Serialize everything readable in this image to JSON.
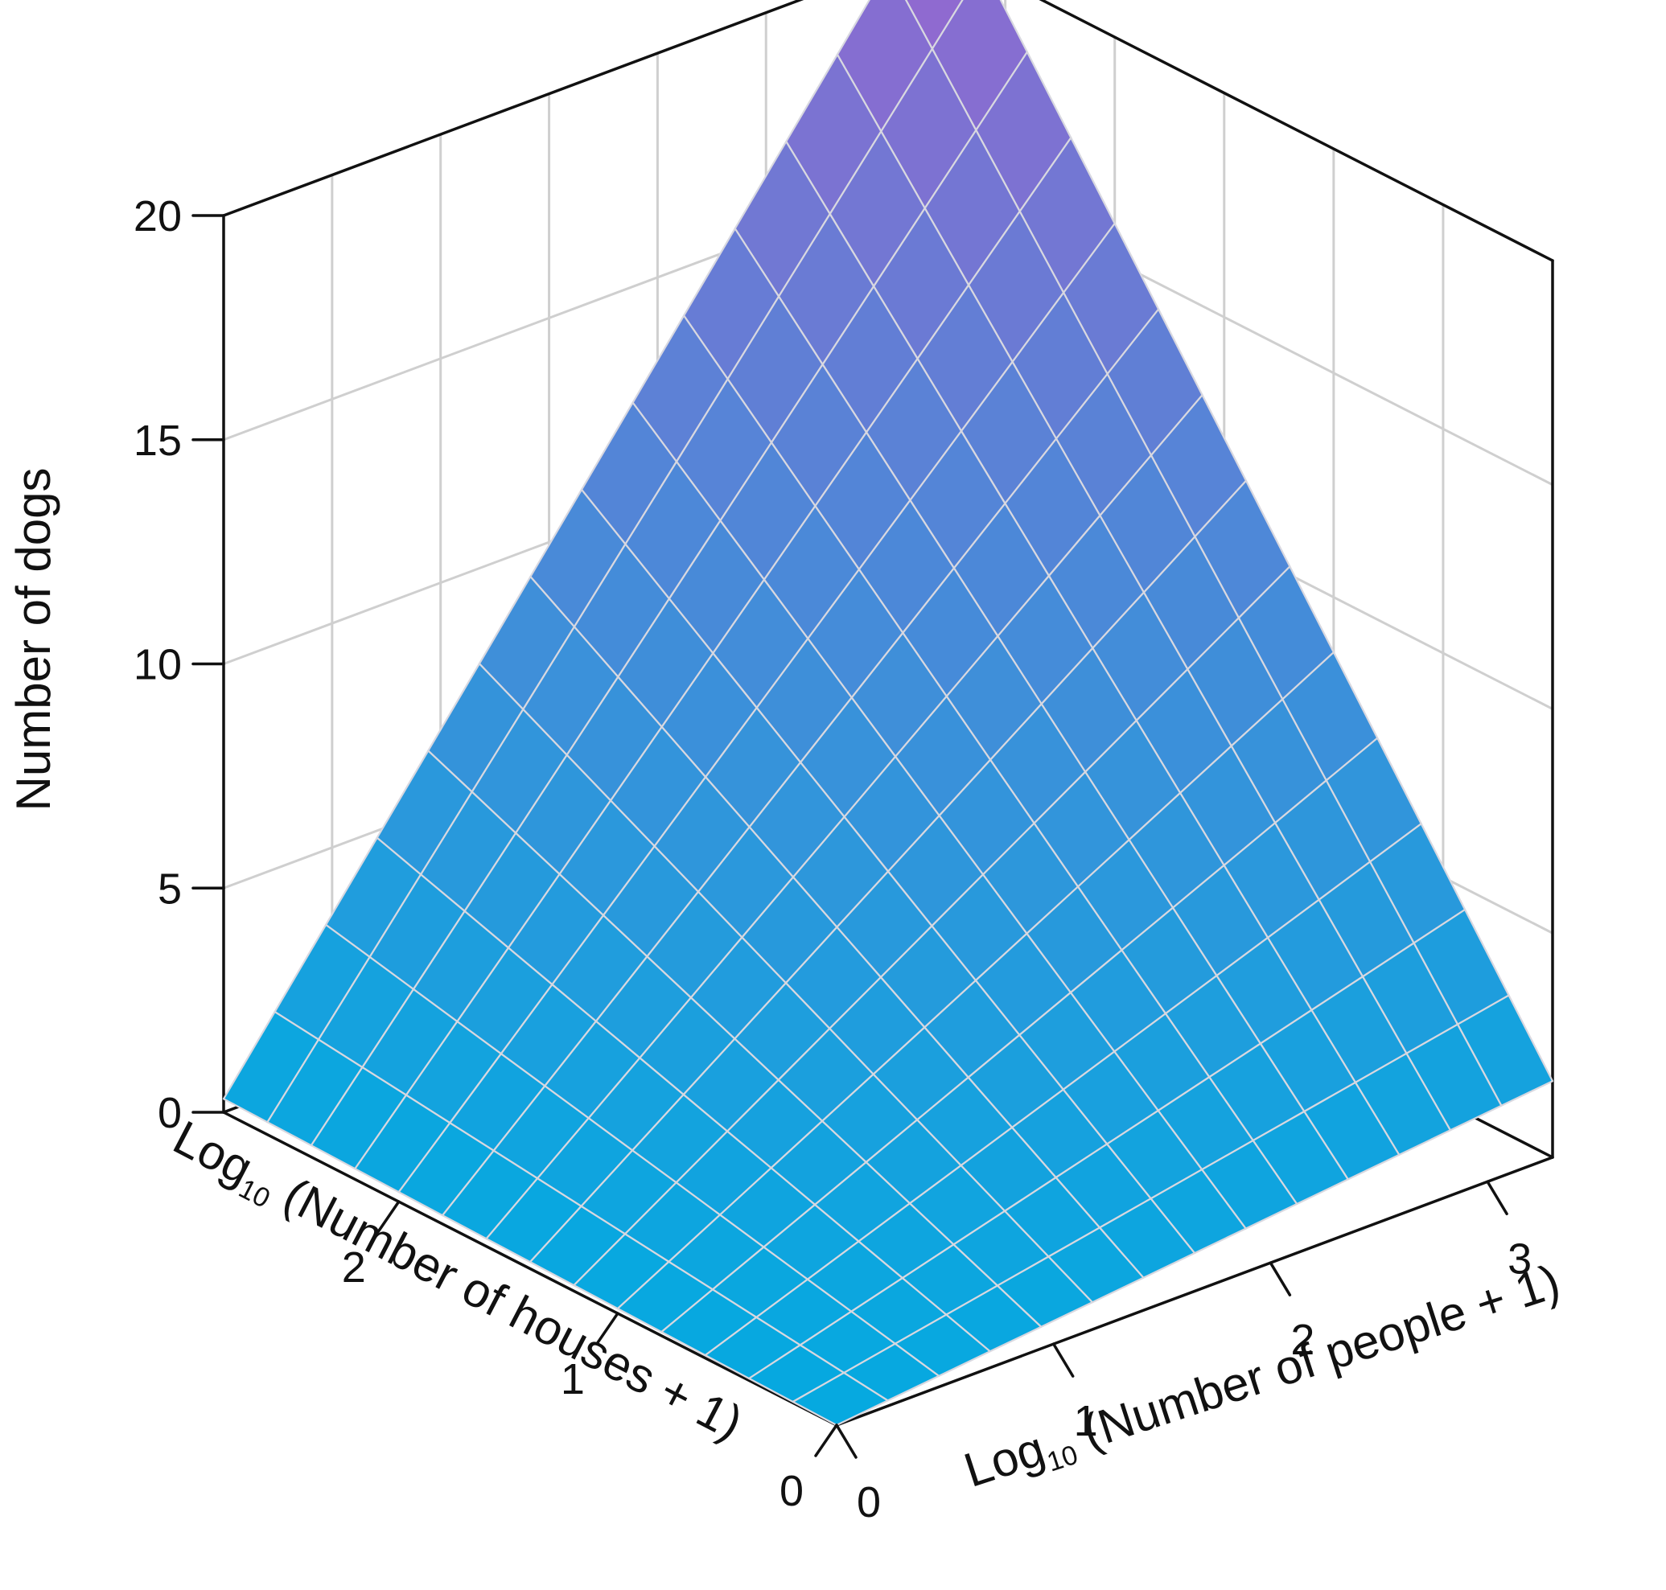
{
  "chart_data": {
    "type": "surface",
    "zlabel": "Number of dogs",
    "xlabel": {
      "prefix": "Log",
      "sub": "10",
      "rest": " (Number of houses + 1)"
    },
    "ylabel": {
      "prefix": "Log",
      "sub": "10",
      "rest": " (Number of people + 1)"
    },
    "xlim": [
      0,
      2.8
    ],
    "ylim": [
      0,
      3.3
    ],
    "zlim": [
      0,
      20
    ],
    "x_ticks": [
      0,
      1,
      2
    ],
    "x_tick_labels": [
      "0",
      "1",
      "2"
    ],
    "y_ticks": [
      0,
      1,
      2,
      3
    ],
    "y_tick_labels": [
      "0",
      "1",
      "2",
      "3"
    ],
    "z_ticks": [
      0,
      5,
      10,
      15,
      20
    ],
    "z_tick_labels": [
      "0",
      "5",
      "10",
      "15",
      "20"
    ],
    "grid": true,
    "surface": {
      "grid_resolution": 14,
      "z_corners": {
        "x0_y0": 0.0,
        "xmax_y0": 0.3,
        "x0_ymax": 1.7,
        "xmax_ymax": 21.5
      },
      "color_low": "#05a9e0",
      "color_high": "#8f6ad0",
      "mesh_color": "#d8d8e0"
    }
  }
}
